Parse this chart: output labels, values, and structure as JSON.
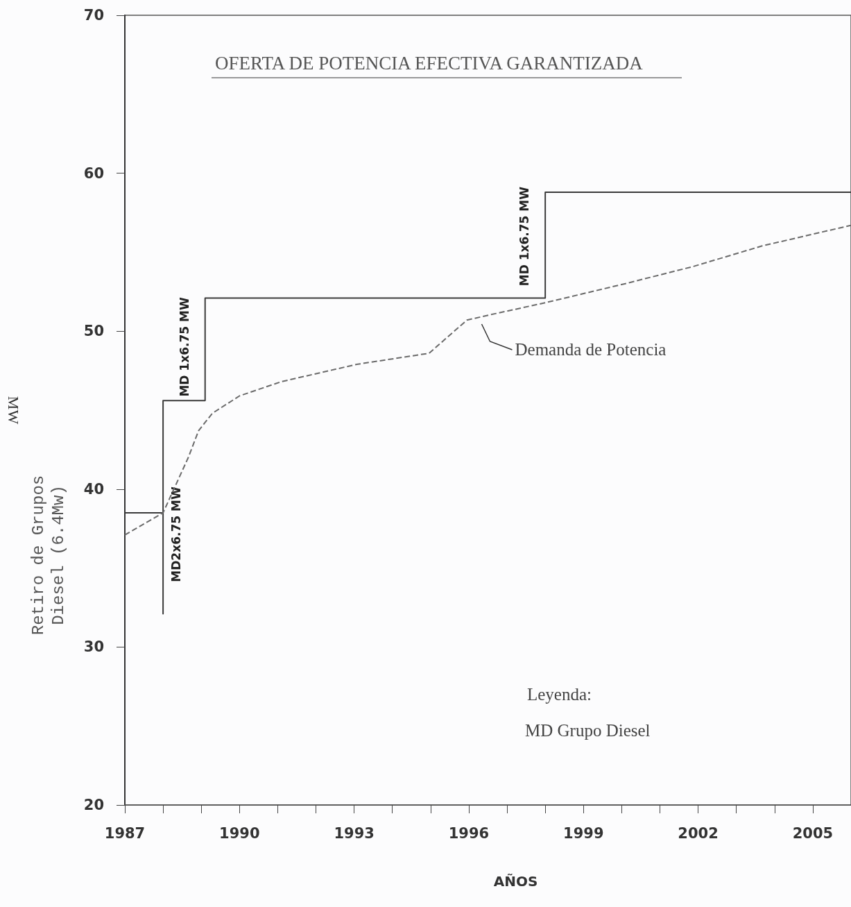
{
  "chart_data": {
    "type": "line",
    "title": "OFERTA DE POTENCIA EFECTIVA GARANTIZADA",
    "xlabel": "AÑOS",
    "ylabel": "MW",
    "xlim": [
      1987,
      2006
    ],
    "xticks": [
      1987,
      1990,
      1993,
      1996,
      1999,
      2002,
      2005
    ],
    "ylim": [
      20,
      70
    ],
    "yticks": [
      20,
      30,
      40,
      50,
      60,
      70
    ],
    "grid": false,
    "marker": "none",
    "series": [
      {
        "color": "#3a3a3a",
        "line_style": "solid",
        "x": [
          1987,
          1988,
          1988,
          1988,
          1989.1,
          1989.1,
          1998,
          1998,
          2006
        ],
        "values": [
          38.5,
          38.5,
          32.1,
          45.6,
          45.6,
          52.1,
          52.1,
          58.8,
          58.8
        ]
      },
      {
        "color": "#6a6a6a",
        "line_style": "dashed",
        "x": [
          1987,
          1988,
          1988.66,
          1988.93,
          1989.29,
          1990,
          1991.09,
          1993.07,
          1994.96,
          1995.95,
          1996.49,
          1998,
          2000.08,
          2001.88,
          2003.68,
          2006
        ],
        "values": [
          37.1,
          38.5,
          42,
          43.7,
          44.8,
          45.9,
          46.8,
          47.9,
          48.6,
          50.7,
          51,
          51.8,
          53,
          54.1,
          55.4,
          56.7
        ]
      }
    ],
    "annotations": [
      {
        "text": "MD 1x6.75 MW",
        "x": 1989.1,
        "y": 49
      },
      "MD2x6.75 MW",
      {
        "text": "MD 1x6.75 MW",
        "x": 1998,
        "y": 56
      },
      "Retiro de Grupos\nDiesel (6.4Mw)",
      {
        "text": "Demanda de Potencia",
        "x": 1996.3,
        "y": 50.8
      },
      "Leyenda:",
      "MD Grupo Diesel"
    ]
  }
}
